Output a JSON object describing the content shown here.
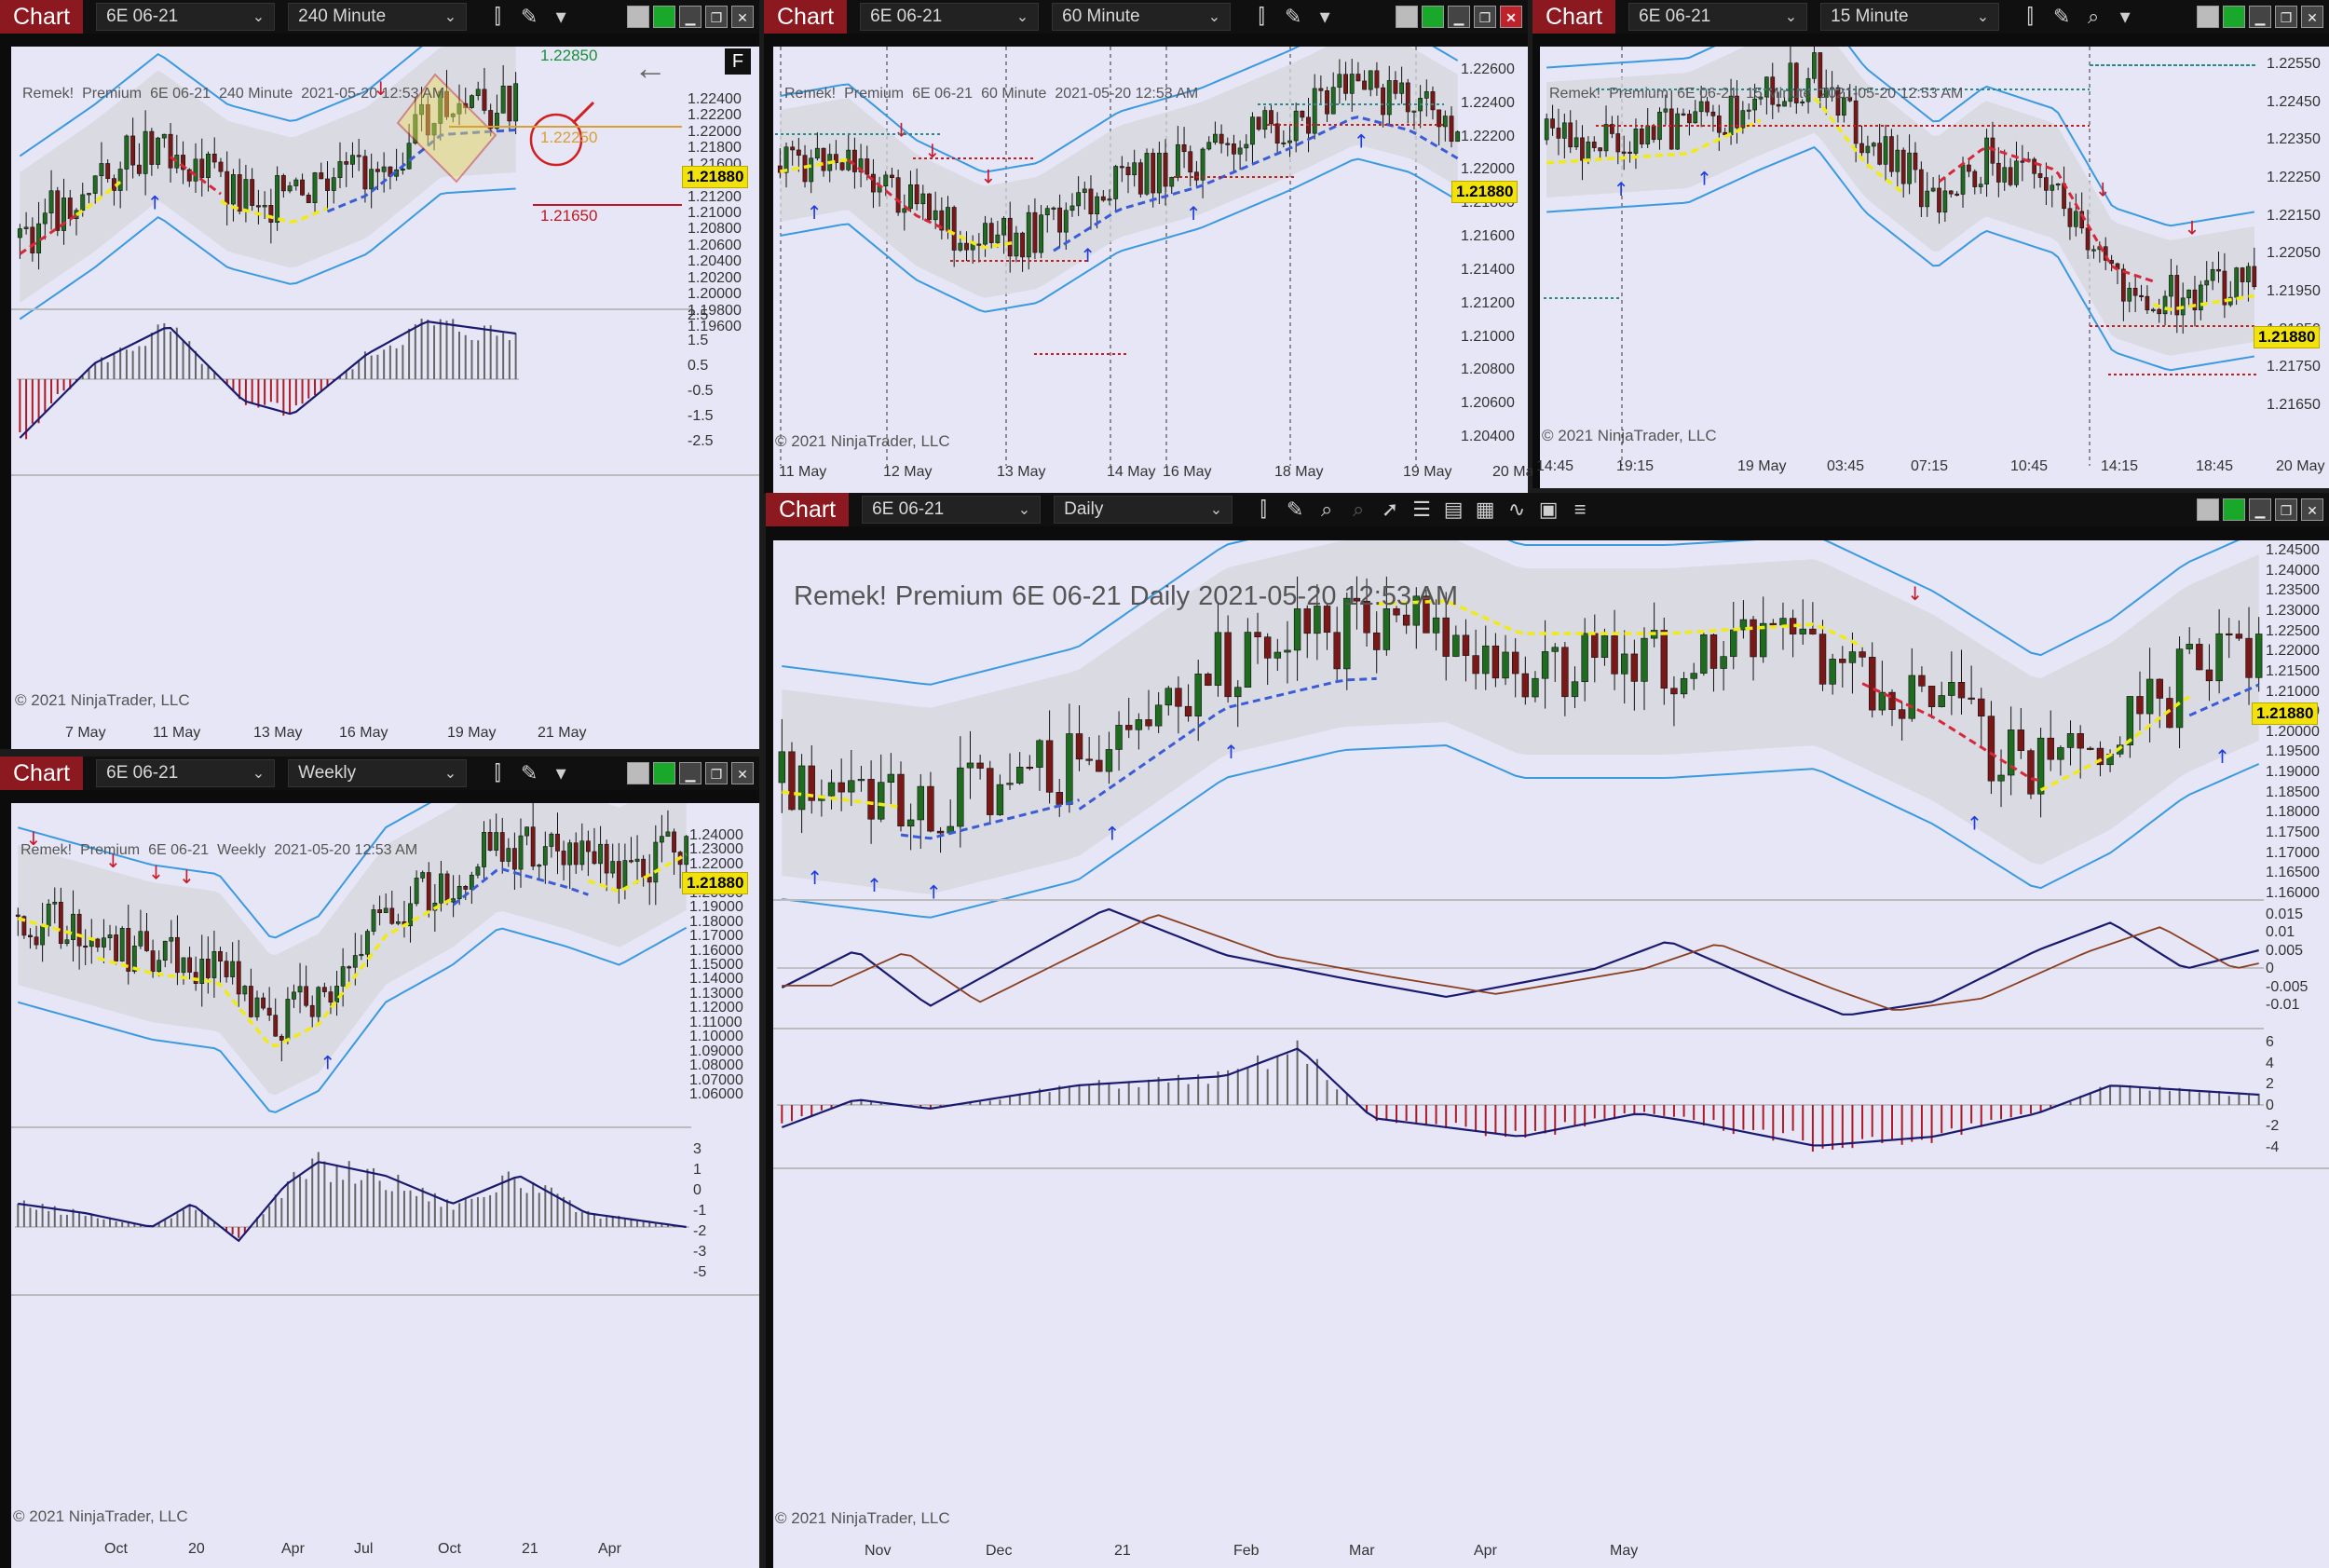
{
  "windows": {
    "c240": {
      "chart_btn": "Chart",
      "instrument": "6E 06-21",
      "period": "240 Minute",
      "header": [
        "Remek!",
        "Premium",
        "6E 06-21",
        "240 Minute",
        "2021-05-20 12:53 AM"
      ],
      "price_label": "1.21880",
      "level_high": "1.22850",
      "level_mid": "1.22250",
      "level_low": "1.21650",
      "f_label": "F",
      "y_ticks": [
        "1.22400",
        "1.22200",
        "1.22000",
        "1.21800",
        "1.21600",
        "1.21400",
        "1.21200",
        "1.21000",
        "1.20800",
        "1.20600",
        "1.20400",
        "1.20200",
        "1.20000",
        "1.19800",
        "1.19600"
      ],
      "osc_ticks": [
        "2.5",
        "1.5",
        "0.5",
        "-0.5",
        "-1.5",
        "-2.5"
      ],
      "x_labels": [
        "7 May",
        "11 May",
        "13 May",
        "16 May",
        "19 May",
        "21 May"
      ],
      "copyright": "© 2021 NinjaTrader, LLC"
    },
    "c60": {
      "chart_btn": "Chart",
      "instrument": "6E 06-21",
      "period": "60 Minute",
      "header": [
        "Remek!",
        "Premium",
        "6E 06-21",
        "60 Minute",
        "2021-05-20 12:53 AM"
      ],
      "price_label": "1.21880",
      "y_ticks": [
        "1.22600",
        "1.22400",
        "1.22200",
        "1.22000",
        "1.21800",
        "1.21600",
        "1.21400",
        "1.21200",
        "1.21000",
        "1.20800",
        "1.20600",
        "1.20400"
      ],
      "x_labels": [
        "11 May",
        "12 May",
        "13 May",
        "14 May",
        "16 May",
        "18 May",
        "19 May",
        "20 May"
      ],
      "copyright": "© 2021 NinjaTrader, LLC"
    },
    "c15": {
      "chart_btn": "Chart",
      "instrument": "6E 06-21",
      "period": "15 Minute",
      "header": [
        "Remek!",
        "Premium",
        "6E 06-21",
        "15 Minute",
        "2021-05-20 12:53 AM"
      ],
      "price_label": "1.21880",
      "y_ticks": [
        "1.22550",
        "1.22450",
        "1.22350",
        "1.22250",
        "1.22150",
        "1.22050",
        "1.21950",
        "1.21850",
        "1.21750",
        "1.21650"
      ],
      "x_labels": [
        "14:45",
        "19:15",
        "19 May",
        "03:45",
        "07:15",
        "10:45",
        "14:15",
        "18:45",
        "20 May"
      ],
      "copyright": "© 2021 NinjaTrader, LLC"
    },
    "cweekly": {
      "chart_btn": "Chart",
      "instrument": "6E 06-21",
      "period": "Weekly",
      "header": [
        "Remek!",
        "Premium",
        "6E 06-21",
        "Weekly",
        "2021-05-20 12:53 AM"
      ],
      "price_label": "1.21880",
      "y_ticks": [
        "1.24000",
        "1.23000",
        "1.22000",
        "1.21000",
        "1.20000",
        "1.19000",
        "1.18000",
        "1.17000",
        "1.16000",
        "1.15000",
        "1.14000",
        "1.13000",
        "1.12000",
        "1.11000",
        "1.10000",
        "1.09000",
        "1.08000",
        "1.07000",
        "1.06000"
      ],
      "osc_ticks": [
        "3",
        "1",
        "0",
        "-1",
        "-2",
        "-3",
        "-5"
      ],
      "x_labels": [
        "Oct",
        "20",
        "Apr",
        "Jul",
        "Oct",
        "21",
        "Apr"
      ],
      "copyright": "© 2021 NinjaTrader, LLC"
    },
    "cdaily": {
      "chart_btn": "Chart",
      "instrument": "6E 06-21",
      "period": "Daily",
      "header": [
        "Remek!",
        "Premium",
        "6E 06-21",
        "Daily",
        "2021-05-20 12:53 AM"
      ],
      "price_label": "1.21880",
      "y_ticks": [
        "1.24500",
        "1.24000",
        "1.23500",
        "1.23000",
        "1.22500",
        "1.22000",
        "1.21500",
        "1.21000",
        "1.20500",
        "1.20000",
        "1.19500",
        "1.19000",
        "1.18500",
        "1.18000",
        "1.17500",
        "1.17000",
        "1.16500",
        "1.16000"
      ],
      "osc1_ticks": [
        "0.015",
        "0.01",
        "0.005",
        "0",
        "-0.005",
        "-0.01"
      ],
      "osc2_ticks": [
        "6",
        "4",
        "2",
        "0",
        "-2",
        "-4"
      ],
      "x_labels": [
        "Nov",
        "Dec",
        "21",
        "Feb",
        "Mar",
        "Apr",
        "May"
      ],
      "copyright": "© 2021 NinjaTrader, LLC"
    }
  },
  "icons": {
    "bars_type": "candlestick-icon",
    "draw": "pencil-icon",
    "zoom": "zoom-in-icon",
    "zoom_out": "zoom-out-icon",
    "pointer": "pointer-icon",
    "properties": "properties-icon",
    "templates": "templates-icon",
    "strategies": "strategies-icon",
    "indicators": "indicators-icon",
    "data_box": "data-box-icon",
    "list": "list-icon"
  },
  "colors": {
    "chart_bg": "#e6e6f6",
    "bull_candle": "#1f6b1f",
    "bear_candle": "#7a1818",
    "band": "#3a9ae0",
    "trend_up": "#3b5cd6",
    "trend_down": "#d6283a",
    "trend_flat": "#f0ea1a",
    "price_label": "#f2e20c",
    "chart_button": "#8c1820"
  }
}
